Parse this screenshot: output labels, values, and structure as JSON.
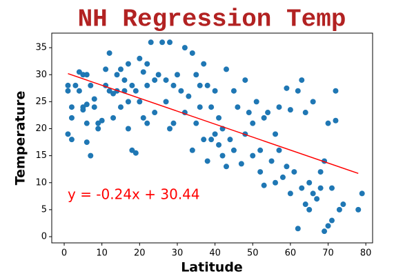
{
  "chart_data": {
    "type": "scatter",
    "title": "NH Regression Temp",
    "x_label": "Latitude",
    "y_label": "Temperature",
    "x": [
      1,
      1,
      1,
      2,
      2,
      2,
      3,
      4,
      4,
      5,
      5,
      5,
      6,
      6,
      6,
      6,
      7,
      7,
      8,
      8,
      9,
      9,
      10,
      11,
      11,
      12,
      12,
      13,
      13,
      14,
      14,
      15,
      15,
      16,
      16,
      17,
      17,
      17,
      18,
      18,
      19,
      19,
      20,
      20,
      21,
      21,
      22,
      22,
      22,
      23,
      24,
      24,
      25,
      26,
      27,
      27,
      28,
      28,
      29,
      29,
      30,
      31,
      32,
      32,
      33,
      34,
      34,
      35,
      35,
      36,
      36,
      37,
      37,
      38,
      38,
      39,
      39,
      40,
      40,
      41,
      41,
      42,
      42,
      43,
      43,
      44,
      45,
      45,
      46,
      47,
      48,
      48,
      49,
      50,
      50,
      51,
      52,
      52,
      53,
      53,
      54,
      55,
      56,
      56,
      57,
      57,
      58,
      59,
      59,
      60,
      60,
      61,
      62,
      62,
      63,
      63,
      64,
      64,
      65,
      65,
      66,
      66,
      67,
      68,
      68,
      69,
      69,
      70,
      70,
      71,
      71,
      72,
      72,
      73,
      74,
      78,
      79
    ],
    "values": [
      19,
      27,
      28,
      18,
      22,
      24,
      28,
      30.5,
      27,
      30,
      24,
      23.5,
      30,
      24.5,
      21,
      17.5,
      28,
      15,
      24,
      25.5,
      20,
      21,
      21.5,
      28,
      31,
      27,
      34,
      22,
      26.5,
      30,
      27,
      24,
      31,
      27,
      29,
      25,
      32,
      20,
      28,
      16,
      15.5,
      27,
      33,
      25,
      22,
      30.5,
      28,
      21,
      32,
      36,
      29,
      23,
      30,
      36,
      29,
      25,
      36,
      20,
      28,
      21,
      30,
      27,
      35,
      23,
      26,
      34,
      16,
      30,
      21,
      28,
      24,
      32,
      18,
      28,
      14,
      24,
      18,
      27,
      19,
      17,
      22,
      15,
      20,
      31,
      13,
      18,
      27,
      16,
      24,
      13.5,
      29,
      19,
      23,
      21,
      15,
      25,
      16,
      12,
      9.5,
      22,
      23,
      14,
      19,
      10,
      24,
      16,
      11,
      27.5,
      13,
      8,
      23.5,
      12,
      27,
      1.5,
      29,
      9,
      23,
      6,
      10,
      5,
      8,
      25,
      7,
      9,
      12,
      14,
      1,
      2,
      21,
      3,
      9,
      27,
      21.5,
      5,
      6,
      5,
      8
    ],
    "color": "#1f77b4",
    "regression": {
      "x": [
        1,
        78
      ],
      "values": [
        30.2,
        11.72
      ],
      "color": "#ff0000"
    },
    "annotation": "y = -0.24x + 30.44",
    "xlim": [
      -3.3,
      81.8
    ],
    "ylim": [
      -1.15,
      37.7
    ],
    "xticks": [
      0,
      10,
      20,
      30,
      40,
      50,
      60,
      70,
      80
    ],
    "yticks": [
      0,
      5,
      10,
      15,
      20,
      25,
      30,
      35
    ]
  }
}
